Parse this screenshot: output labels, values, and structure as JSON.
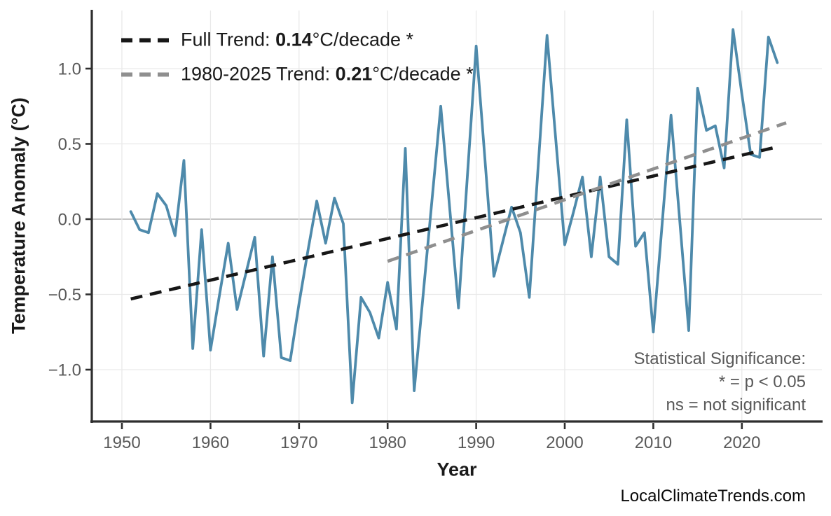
{
  "chart": {
    "x_axis": {
      "label": "Year",
      "ticks": [
        {
          "value": 1950,
          "label": "1950"
        },
        {
          "value": 1960,
          "label": "1960"
        },
        {
          "value": 1970,
          "label": "1970"
        },
        {
          "value": 1980,
          "label": "1980"
        },
        {
          "value": 1990,
          "label": "1990"
        },
        {
          "value": 2000,
          "label": "2000"
        },
        {
          "value": 2010,
          "label": "2010"
        },
        {
          "value": 2020,
          "label": "2020"
        }
      ]
    },
    "y_axis": {
      "label": "Temperature Anomaly (°C)",
      "ticks": [
        {
          "value": 1.0,
          "label": "1.0"
        },
        {
          "value": 0.5,
          "label": "0.5"
        },
        {
          "value": 0.0,
          "label": "0.0"
        },
        {
          "value": -0.5,
          "label": "−0.5"
        },
        {
          "value": -1.0,
          "label": "−1.0"
        }
      ]
    }
  },
  "chart_data": {
    "type": "line",
    "title": "",
    "xlabel": "Year",
    "ylabel": "Temperature Anomaly (°C)",
    "xlim": [
      1946.5,
      2030
    ],
    "ylim": [
      -1.35,
      1.39
    ],
    "x_ticks": [
      1950,
      1960,
      1970,
      1980,
      1990,
      2000,
      2010,
      2020
    ],
    "y_ticks": [
      1.0,
      0.5,
      0.0,
      -0.5,
      -1.0
    ],
    "grid": true,
    "zero_reference_line": 0.0,
    "legend_position": "top-left",
    "x": [
      1951,
      1952,
      1953,
      1954,
      1955,
      1956,
      1957,
      1958,
      1959,
      1960,
      1961,
      1962,
      1963,
      1964,
      1965,
      1966,
      1967,
      1968,
      1969,
      1970,
      1971,
      1972,
      1973,
      1974,
      1975,
      1976,
      1977,
      1978,
      1979,
      1980,
      1981,
      1982,
      1983,
      1984,
      1985,
      1986,
      1987,
      1988,
      1989,
      1990,
      1991,
      1992,
      1993,
      1994,
      1995,
      1996,
      1997,
      1998,
      1999,
      2000,
      2001,
      2002,
      2003,
      2004,
      2005,
      2006,
      2007,
      2008,
      2009,
      2010,
      2011,
      2012,
      2013,
      2014,
      2015,
      2016,
      2017,
      2018,
      2019,
      2020,
      2021,
      2022,
      2023,
      2024
    ],
    "series": [
      {
        "name": "annual-temperature-anomaly",
        "type": "line",
        "color": "#4e8aab",
        "values": [
          0.05,
          -0.07,
          -0.09,
          0.17,
          0.09,
          -0.11,
          0.39,
          -0.86,
          -0.07,
          -0.87,
          -0.51,
          -0.16,
          -0.6,
          -0.36,
          -0.12,
          -0.91,
          -0.25,
          -0.92,
          -0.94,
          -0.56,
          -0.21,
          0.12,
          -0.16,
          0.14,
          -0.03,
          -1.22,
          -0.52,
          -0.62,
          -0.79,
          -0.42,
          -0.73,
          0.47,
          -1.14,
          -0.51,
          0.12,
          0.75,
          0.08,
          -0.59,
          0.28,
          1.15,
          0.39,
          -0.38,
          -0.15,
          0.08,
          -0.09,
          -0.52,
          0.35,
          1.22,
          0.52,
          -0.17,
          0.05,
          0.28,
          -0.25,
          0.28,
          -0.25,
          -0.3,
          0.66,
          -0.18,
          -0.09,
          -0.75,
          -0.03,
          0.69,
          -0.02,
          -0.74,
          0.87,
          0.59,
          0.62,
          0.34,
          1.26,
          0.83,
          0.43,
          0.41,
          1.21,
          1.04
        ]
      },
      {
        "name": "full-trend",
        "type": "trend-line",
        "style": "dashed",
        "color": "#171717",
        "x": [
          1951,
          2024
        ],
        "values": [
          -0.53,
          0.48
        ],
        "slope_c_per_decade": 0.14,
        "significant": true
      },
      {
        "name": "trend-1980-2025",
        "type": "trend-line",
        "style": "dashed",
        "color": "#8f8f8f",
        "x": [
          1980,
          2025
        ],
        "values": [
          -0.28,
          0.64
        ],
        "slope_c_per_decade": 0.21,
        "significant": true
      }
    ]
  },
  "legend": {
    "rows": [
      {
        "prefix": "Full Trend: ",
        "value": "0.14",
        "suffix": "°C/decade *",
        "color": "#171717"
      },
      {
        "prefix": "1980-2025 Trend: ",
        "value": "0.21",
        "suffix": "°C/decade *",
        "color": "#8f8f8f"
      }
    ]
  },
  "annotation": {
    "lines": [
      "Statistical Significance:",
      "* = p < 0.05",
      "ns = not significant"
    ]
  },
  "watermark": "LocalClimateTrends.com",
  "colors": {
    "series": "#4e8aab",
    "full_trend": "#171717",
    "recent_trend": "#8f8f8f",
    "grid": "#e9e9e9",
    "zero_line": "#b0b0b0",
    "axis": "#2e2e2e",
    "tick_text": "#595959",
    "annotation_text": "#595959",
    "title_text": "#1a1a1a",
    "watermark_text": "#0a0a0a",
    "background": "#ffffff"
  }
}
